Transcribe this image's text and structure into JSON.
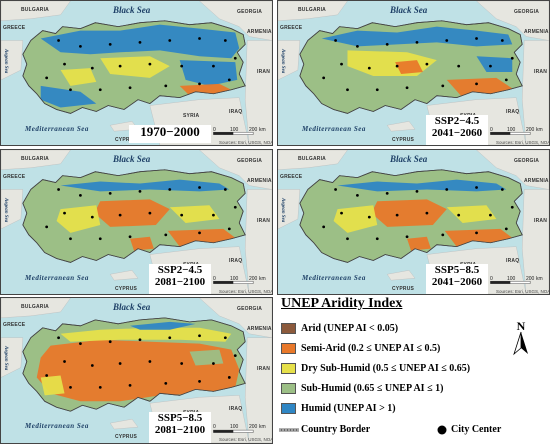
{
  "maps": [
    {
      "period": "1970−2000",
      "scenario": "",
      "dominant": "humid"
    },
    {
      "period": "2041−2060",
      "scenario": "SSP2−4.5",
      "dominant": "mix1"
    },
    {
      "period": "2081−2100",
      "scenario": "SSP2−4.5",
      "dominant": "mix2"
    },
    {
      "period": "2041−2060",
      "scenario": "SSP5−8.5",
      "dominant": "mix2"
    },
    {
      "period": "2081−2100",
      "scenario": "SSP5−8.5",
      "dominant": "semiarid"
    }
  ],
  "map_labels": {
    "black_sea": "Black Sea",
    "mediterranean_sea": "Mediterranean Sea",
    "aegean_sea": "Aegean Sea",
    "bulgaria": "BULGARIA",
    "greece": "GREECE",
    "georgia": "GEORGIA",
    "armenia": "ARMENIA",
    "iran": "IRAN",
    "iraq": "IRAQ",
    "syria": "SYRIA",
    "cyprus": "CYPRUS",
    "source": "Sources: Esri, USGS, NOAA",
    "scale_ticks": [
      "0",
      "100",
      "200"
    ],
    "scale_unit": "km"
  },
  "legend": {
    "title": "UNEP Aridity Index",
    "items": [
      {
        "label": "Arid (UNEP AI < 0.05)",
        "color": "#8c5a3c"
      },
      {
        "label": "Semi-Arid (0.2 ≤ UNEP AI ≤ 0.5)",
        "color": "#e8782a"
      },
      {
        "label": "Dry Sub-Humid (0.5 ≤ UNEP AI ≤ 0.65)",
        "color": "#e6e04a"
      },
      {
        "label": "Sub-Humid (0.65 ≤ UNEP AI ≤ 1)",
        "color": "#9cbf86"
      },
      {
        "label": "Humid (UNEP AI > 1)",
        "color": "#2f86c4"
      }
    ],
    "country_border": "Country Border",
    "city_center": "City Center",
    "north": "N"
  },
  "colors": {
    "sea": "#bfe1e6",
    "land_bg": "#e6e6e0",
    "arid": "#8c5a3c",
    "semi_arid": "#e8782a",
    "dry_sub_humid": "#e6e04a",
    "sub_humid": "#9cbf86",
    "humid": "#2f86c4"
  }
}
